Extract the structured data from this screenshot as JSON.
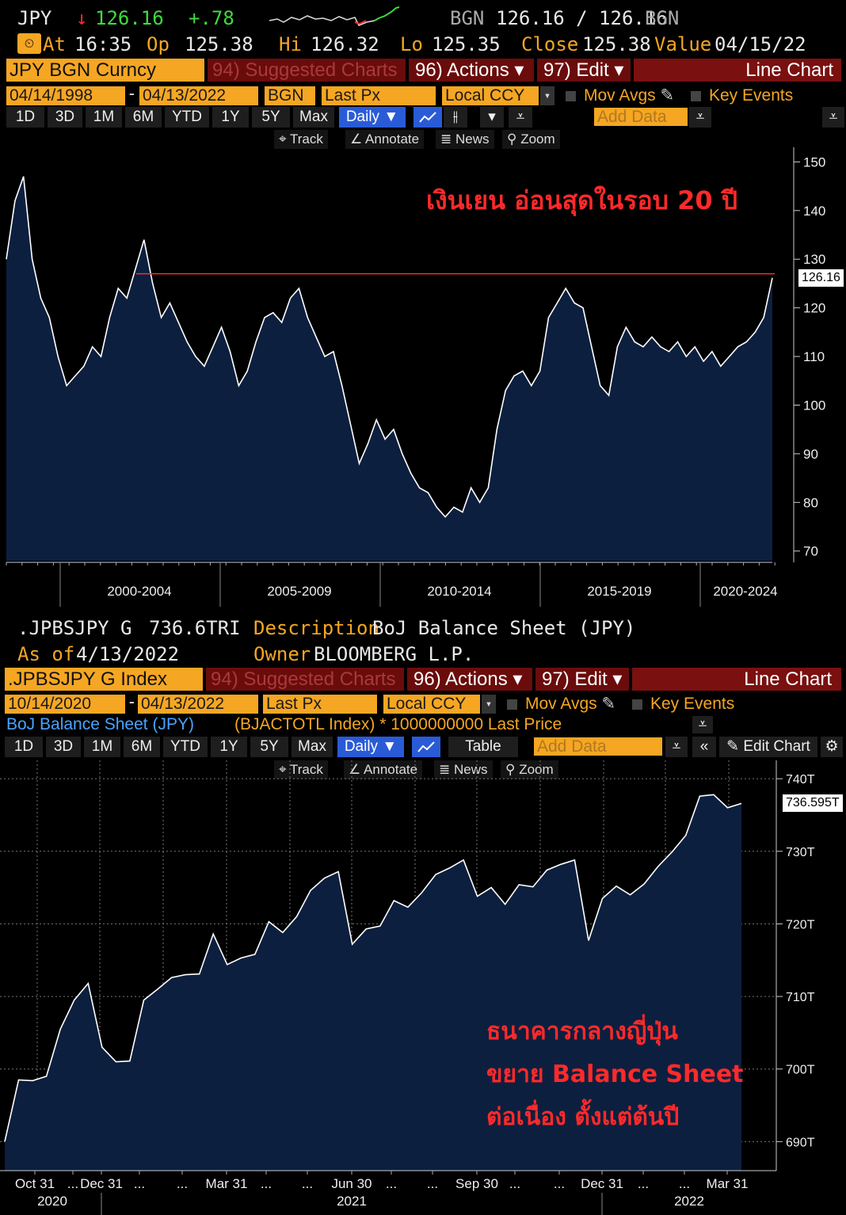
{
  "top": {
    "header": {
      "ticker": "JPY",
      "arrow": "↓",
      "price": "126.16",
      "change": "+.78",
      "source": "BGN",
      "bid_ask": "126.16 / 126.16",
      "source2": "BGN",
      "time_label": "At",
      "time": "16:35",
      "op_label": "Op",
      "op": "125.38",
      "hi_label": "Hi",
      "hi": "126.32",
      "lo_label": "Lo",
      "lo": "125.35",
      "close_label": "Close",
      "close": "125.38",
      "value_label": "Value",
      "value_date": "04/15/22"
    },
    "menubar": {
      "security": "JPY BGN Curncy",
      "suggested": "94) Suggested Charts",
      "actions": "96) Actions ▾",
      "edit": "97) Edit ▾",
      "chart_type": "Line Chart"
    },
    "settings": {
      "start_date": "04/14/1998",
      "end_date": "04/13/2022",
      "source": "BGN",
      "field": "Last Px",
      "currency": "Local CCY",
      "mov_avgs": "Mov Avgs",
      "key_events": "Key Events"
    },
    "periods": [
      "1D",
      "3D",
      "1M",
      "6M",
      "YTD",
      "1Y",
      "5Y",
      "Max"
    ],
    "frequency": "Daily ▼",
    "add_data": "Add Data",
    "tools": [
      "Track",
      "Annotate",
      "News",
      "Zoom"
    ],
    "annotation": "เงินเยน อ่อนสุดในรอบ 20 ปี",
    "last_value_tag": "126.16"
  },
  "bottom": {
    "header": {
      "ticker": ".JPBSJPY G",
      "value": "736.6TRI",
      "desc_label": "Description",
      "description": "BoJ Balance Sheet (JPY)",
      "asof_label": "As of",
      "asof": "4/13/2022",
      "owner_label": "Owner",
      "owner": "BLOOMBERG L.P."
    },
    "menubar": {
      "security": ".JPBSJPY G Index",
      "suggested": "94) Suggested Charts",
      "actions": "96) Actions ▾",
      "edit": "97) Edit ▾",
      "chart_type": "Line Chart"
    },
    "settings": {
      "start_date": "10/14/2020",
      "end_date": "04/13/2022",
      "field": "Last Px",
      "currency": "Local CCY",
      "mov_avgs": "Mov Avgs",
      "key_events": "Key Events"
    },
    "legend": {
      "name": "BoJ Balance Sheet (JPY)",
      "detail": "(BJACTOTL Index) * 1000000000 Last Price"
    },
    "periods": [
      "1D",
      "3D",
      "1M",
      "6M",
      "YTD",
      "1Y",
      "5Y",
      "Max"
    ],
    "frequency": "Daily ▼",
    "table": "Table",
    "add_data": "Add Data",
    "edit_chart": "Edit Chart",
    "tools": [
      "Track",
      "Annotate",
      "News",
      "Zoom"
    ],
    "annotation_lines": [
      "ธนาคารกลางญี่ปุ่น",
      "ขยาย Balance Sheet",
      "ต่อเนื่อง ตั้งแต่ต้นปี"
    ],
    "last_value_tag": "736.595T"
  },
  "colors": {
    "amber": "#f5a623",
    "fill": "#0d1f3f",
    "line": "#ffffff",
    "red": "#ff2a2a",
    "menu_red": "#7a1010"
  },
  "chart_data": [
    {
      "type": "area",
      "series": [
        {
          "values": [
            130,
            142,
            147,
            130,
            122,
            118,
            110,
            104,
            106,
            108,
            112,
            110,
            118,
            124,
            122,
            128,
            134,
            125,
            118,
            121,
            117,
            113,
            110,
            108,
            112,
            116,
            111,
            104,
            107,
            113,
            118,
            119,
            117,
            122,
            124,
            118,
            114,
            110,
            111,
            104,
            96,
            88,
            92,
            97,
            93,
            95,
            90,
            86,
            83,
            82,
            79,
            77,
            79,
            78,
            83,
            80,
            83,
            95,
            103,
            106,
            107,
            104,
            107,
            118,
            121,
            124,
            121,
            120,
            112,
            104,
            102,
            112,
            116,
            113,
            112,
            114,
            112,
            111,
            113,
            110,
            112,
            109,
            111,
            108,
            110,
            112,
            113,
            115,
            118,
            126.16
          ]
        }
      ],
      "x_period_labels": [
        "2000-2004",
        "2005-2009",
        "2010-2014",
        "2015-2019",
        "2020-2024"
      ],
      "y_ticks": [
        70,
        80,
        90,
        100,
        110,
        120,
        130,
        140,
        150
      ],
      "ylim": [
        68,
        153
      ],
      "reference_line": 127,
      "grid": false
    },
    {
      "type": "area",
      "series": [
        {
          "values": [
            690,
            698.5,
            698.4,
            699,
            705.5,
            709.5,
            711.8,
            703,
            701,
            701.1,
            709.5,
            711,
            712.6,
            713,
            713.1,
            718.6,
            714.4,
            715.3,
            715.8,
            720.3,
            718.8,
            721,
            724.6,
            726.3,
            727.2,
            717.2,
            719.3,
            719.7,
            723.2,
            722.3,
            724.3,
            726.8,
            727.7,
            728.8,
            723.8,
            725,
            722.7,
            725.4,
            725.1,
            727.4,
            728.2,
            728.8,
            717.7,
            723.5,
            725.2,
            724,
            725.5,
            727.9,
            729.9,
            732.2,
            737.6,
            737.8,
            736,
            736.595
          ]
        }
      ],
      "x_ticks": [
        "Oct 31",
        "...",
        "Dec 31",
        "...",
        "...",
        "Mar 31",
        "...",
        "...",
        "Jun 30",
        "...",
        "...",
        "Sep 30",
        "...",
        "...",
        "Dec 31",
        "...",
        "...",
        "Mar 31"
      ],
      "x_year_labels": [
        "2020",
        "2021",
        "2022"
      ],
      "y_ticks": [
        "690T",
        "700T",
        "710T",
        "720T",
        "730T",
        "740T"
      ],
      "ylim": [
        686,
        741
      ],
      "grid": true
    }
  ]
}
